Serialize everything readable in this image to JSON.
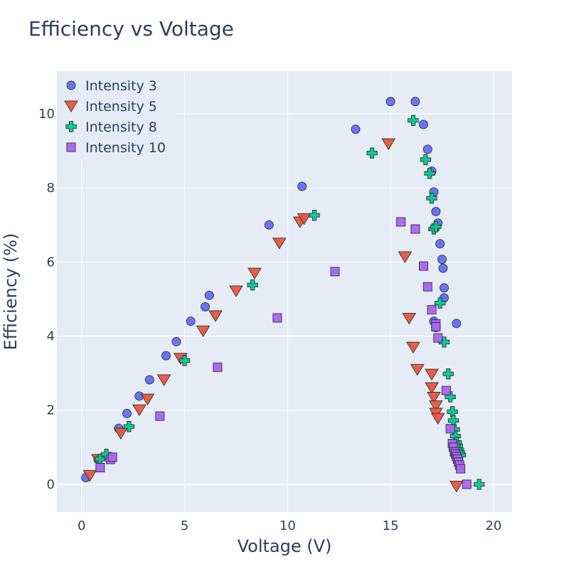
{
  "chart_data": {
    "type": "scatter",
    "title": "Efficiency vs Voltage",
    "xlabel": "Voltage (V)",
    "ylabel": "Efficiency (%)",
    "xlim": [
      -1.2,
      20.9
    ],
    "ylim": [
      -0.75,
      11.15
    ],
    "xticks": [
      0,
      5,
      10,
      15,
      20
    ],
    "yticks": [
      0,
      2,
      4,
      6,
      8,
      10
    ],
    "grid": true,
    "plot_bgcolor": "#e5ecf6",
    "legend_position": "top-left",
    "series": [
      {
        "name": "Intensity 3",
        "marker": "circle",
        "color": "#636efa",
        "points": [
          [
            0.2,
            0.18
          ],
          [
            0.8,
            0.67
          ],
          [
            1.8,
            1.51
          ],
          [
            2.2,
            1.91
          ],
          [
            2.8,
            2.38
          ],
          [
            3.3,
            2.82
          ],
          [
            4.1,
            3.47
          ],
          [
            4.6,
            3.85
          ],
          [
            5.3,
            4.4
          ],
          [
            6.0,
            4.79
          ],
          [
            6.2,
            5.1
          ],
          [
            9.1,
            7.0
          ],
          [
            10.7,
            8.04
          ],
          [
            13.3,
            9.58
          ],
          [
            15.0,
            10.33
          ],
          [
            16.2,
            10.33
          ],
          [
            16.6,
            9.71
          ],
          [
            16.8,
            9.04
          ],
          [
            17.0,
            8.45
          ],
          [
            17.1,
            7.89
          ],
          [
            17.2,
            7.36
          ],
          [
            17.3,
            7.05
          ],
          [
            17.4,
            6.49
          ],
          [
            17.5,
            6.07
          ],
          [
            17.55,
            5.83
          ],
          [
            17.6,
            5.3
          ],
          [
            17.6,
            5.03
          ],
          [
            17.1,
            4.4
          ],
          [
            17.2,
            4.23
          ],
          [
            18.2,
            4.34
          ]
        ]
      },
      {
        "name": "Intensity 5",
        "marker": "triangle-down",
        "color": "#ef553b",
        "points": [
          [
            0.4,
            0.24
          ],
          [
            0.8,
            0.67
          ],
          [
            1.9,
            1.38
          ],
          [
            2.8,
            2.01
          ],
          [
            3.2,
            2.3
          ],
          [
            4.0,
            2.82
          ],
          [
            4.8,
            3.4
          ],
          [
            5.9,
            4.14
          ],
          [
            6.5,
            4.55
          ],
          [
            7.5,
            5.22
          ],
          [
            8.4,
            5.7
          ],
          [
            9.6,
            6.51
          ],
          [
            10.6,
            7.08
          ],
          [
            10.8,
            7.17
          ],
          [
            14.9,
            9.19
          ],
          [
            15.7,
            6.14
          ],
          [
            15.9,
            4.48
          ],
          [
            16.1,
            3.7
          ],
          [
            16.3,
            3.1
          ],
          [
            17.0,
            2.97
          ],
          [
            17.0,
            2.61
          ],
          [
            17.1,
            2.35
          ],
          [
            17.2,
            2.12
          ],
          [
            17.2,
            1.92
          ],
          [
            17.3,
            1.78
          ],
          [
            18.2,
            -0.05
          ]
        ]
      },
      {
        "name": "Intensity 8",
        "marker": "cross",
        "color": "#00cc96",
        "points": [
          [
            0.9,
            0.68
          ],
          [
            1.2,
            0.81
          ],
          [
            2.3,
            1.56
          ],
          [
            5.0,
            3.34
          ],
          [
            8.3,
            5.38
          ],
          [
            11.3,
            7.26
          ],
          [
            14.1,
            8.94
          ],
          [
            16.1,
            9.82
          ],
          [
            16.7,
            8.76
          ],
          [
            16.9,
            8.39
          ],
          [
            17.0,
            7.72
          ],
          [
            17.1,
            6.89
          ],
          [
            17.2,
            6.95
          ],
          [
            17.4,
            4.89
          ],
          [
            17.6,
            3.84
          ],
          [
            17.8,
            2.98
          ],
          [
            17.9,
            2.36
          ],
          [
            18.0,
            1.96
          ],
          [
            18.05,
            1.72
          ],
          [
            18.1,
            1.48
          ],
          [
            18.15,
            1.3
          ],
          [
            18.2,
            1.13
          ],
          [
            18.25,
            1.03
          ],
          [
            18.3,
            0.93
          ],
          [
            18.35,
            0.85
          ],
          [
            18.4,
            0.79
          ],
          [
            19.3,
            0.0
          ]
        ]
      },
      {
        "name": "Intensity 10",
        "marker": "square",
        "color": "#ab63fa",
        "points": [
          [
            0.9,
            0.45
          ],
          [
            1.4,
            0.67
          ],
          [
            1.5,
            0.73
          ],
          [
            3.8,
            1.84
          ],
          [
            6.6,
            3.16
          ],
          [
            9.5,
            4.49
          ],
          [
            12.3,
            5.74
          ],
          [
            15.5,
            7.08
          ],
          [
            16.2,
            6.89
          ],
          [
            16.6,
            5.89
          ],
          [
            16.8,
            5.33
          ],
          [
            17.0,
            4.71
          ],
          [
            17.2,
            4.33
          ],
          [
            17.2,
            4.25
          ],
          [
            17.3,
            3.95
          ],
          [
            17.7,
            2.53
          ],
          [
            17.9,
            1.5
          ],
          [
            18.0,
            1.1
          ],
          [
            18.05,
            1.0
          ],
          [
            18.1,
            0.88
          ],
          [
            18.15,
            0.82
          ],
          [
            18.2,
            0.75
          ],
          [
            18.25,
            0.68
          ],
          [
            18.3,
            0.6
          ],
          [
            18.35,
            0.52
          ],
          [
            18.4,
            0.42
          ],
          [
            18.7,
            0.0
          ]
        ]
      }
    ]
  }
}
